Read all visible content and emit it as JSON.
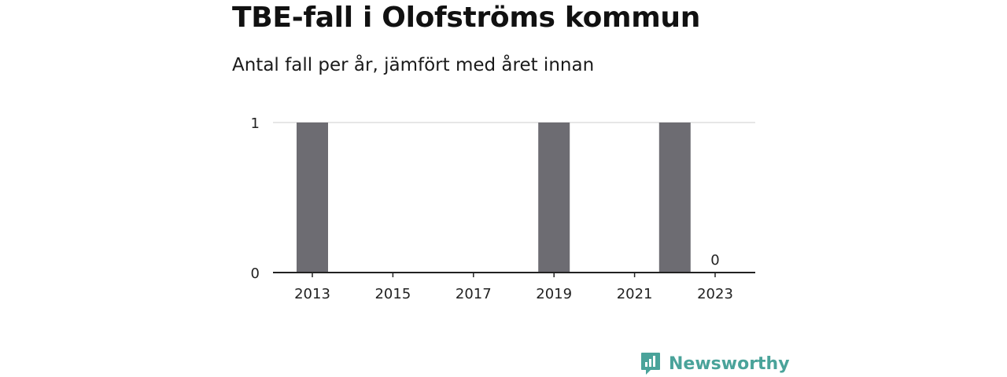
{
  "colors": {
    "bar": "#6d6c72",
    "grid": "#dddddd",
    "axis": "#222222",
    "brand": "#4aa39a"
  },
  "chart_data": {
    "type": "bar",
    "title": "TBE-fall i Olofströms kommun",
    "subtitle": "Antal fall per år, jämfört med året innan",
    "x": [
      2013,
      2014,
      2015,
      2016,
      2017,
      2018,
      2019,
      2020,
      2021,
      2022,
      2023
    ],
    "values": [
      1,
      0,
      0,
      0,
      0,
      0,
      1,
      0,
      0,
      1,
      0
    ],
    "xticks": [
      2013,
      2015,
      2017,
      2019,
      2021,
      2023
    ],
    "yticks": [
      0,
      1
    ],
    "ylim": [
      0,
      1
    ],
    "grid": true,
    "data_labels": [
      {
        "x": 2023,
        "text": "0"
      }
    ]
  },
  "brand": {
    "name": "Newsworthy",
    "icon": "newsworthy-logo-icon"
  }
}
